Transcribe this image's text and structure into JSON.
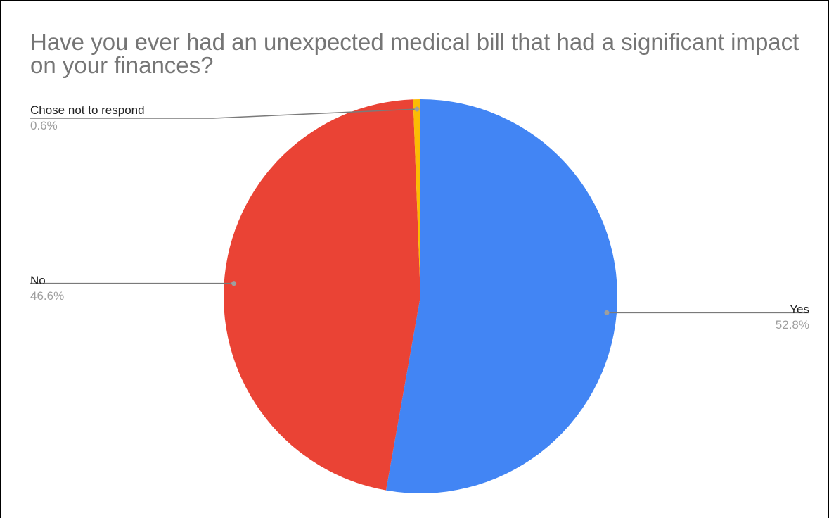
{
  "chart_data": {
    "type": "pie",
    "title": "Have you ever had an unexpected medical bill that had a significant impact on your finances?",
    "legend": "none",
    "slices": [
      {
        "label": "Yes",
        "value": 52.8,
        "value_label": "52.8%",
        "color": "#4285f4"
      },
      {
        "label": "No",
        "value": 46.6,
        "value_label": "46.6%",
        "color": "#ea4335"
      },
      {
        "label": "Chose not to respond",
        "value": 0.6,
        "value_label": "0.6%",
        "color": "#fbbc04"
      }
    ]
  }
}
